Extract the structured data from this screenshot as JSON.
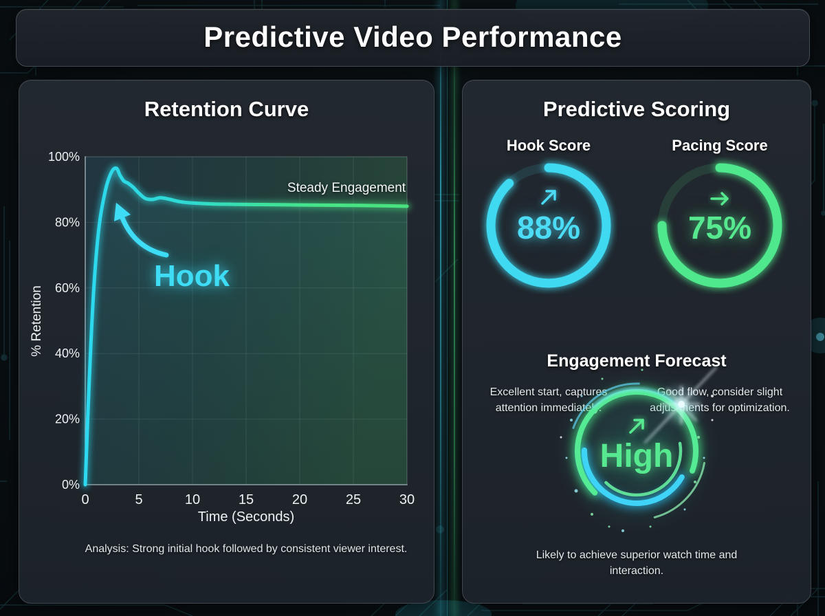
{
  "page_title": "Predictive Video Performance",
  "retention": {
    "title": "Retention Curve",
    "xlabel": "Time (Seconds)",
    "ylabel": "% Retention",
    "x_ticks": [
      "0",
      "5",
      "10",
      "15",
      "20",
      "25",
      "30"
    ],
    "y_ticks": [
      "100%",
      "80%",
      "60%",
      "40%",
      "20%",
      "0%"
    ],
    "hook_annotation": "Hook",
    "steady_annotation": "Steady Engagement",
    "analysis": "Analysis: Strong initial hook followed by consistent viewer interest."
  },
  "scoring": {
    "title": "Predictive Scoring",
    "hook": {
      "label": "Hook Score",
      "value": "88%",
      "description": "Excellent start, captures attention immediately."
    },
    "pacing": {
      "label": "Pacing Score",
      "value": "75%",
      "description": "Good flow, consider slight adjustments for optimization."
    }
  },
  "forecast": {
    "title": "Engagement Forecast",
    "value": "High",
    "description": "Likely to achieve superior watch time and interaction."
  },
  "colors": {
    "cyan": "#3fd9f2",
    "green": "#4fe88c",
    "panel": "#21262d",
    "background": "#0a1013"
  },
  "chart_data": [
    {
      "type": "line",
      "title": "Retention Curve",
      "xlabel": "Time (Seconds)",
      "ylabel": "% Retention",
      "xlim": [
        0,
        30
      ],
      "ylim": [
        0,
        100
      ],
      "x_ticks": [
        0,
        5,
        10,
        15,
        20,
        25,
        30
      ],
      "y_ticks_percent": [
        0,
        20,
        40,
        60,
        80,
        100
      ],
      "grid": true,
      "legend": "none",
      "series": [
        {
          "name": "% Retention",
          "color_start": "#2fd7f0",
          "color_end": "#49e27d",
          "points": [
            [
              0,
              0
            ],
            [
              0.35,
              30
            ],
            [
              0.8,
              60
            ],
            [
              1.3,
              79
            ],
            [
              1.9,
              90
            ],
            [
              2.45,
              95.3
            ],
            [
              2.9,
              96.5
            ],
            [
              3.25,
              94.3
            ],
            [
              3.6,
              92.6
            ],
            [
              4,
              91.9
            ],
            [
              4.5,
              90.6
            ],
            [
              5,
              88.9
            ],
            [
              5.6,
              87.3
            ],
            [
              6.3,
              87
            ],
            [
              7,
              87.5
            ],
            [
              7.9,
              87
            ],
            [
              8.8,
              86.3
            ],
            [
              10,
              85.9
            ],
            [
              12,
              85.6
            ],
            [
              14,
              85.5
            ],
            [
              17,
              85.4
            ],
            [
              20,
              85.3
            ],
            [
              24,
              85.2
            ],
            [
              27,
              85.1
            ],
            [
              30,
              84.9
            ]
          ]
        }
      ],
      "annotations": [
        "Hook",
        "Steady Engagement"
      ]
    },
    {
      "type": "gauge",
      "label": "Hook Score",
      "value": 88,
      "max": 100,
      "color": "#3fd9f2"
    },
    {
      "type": "gauge",
      "label": "Pacing Score",
      "value": 75,
      "max": 100,
      "color": "#4fe88c"
    },
    {
      "type": "rating",
      "label": "Engagement Forecast",
      "value": "High"
    }
  ]
}
